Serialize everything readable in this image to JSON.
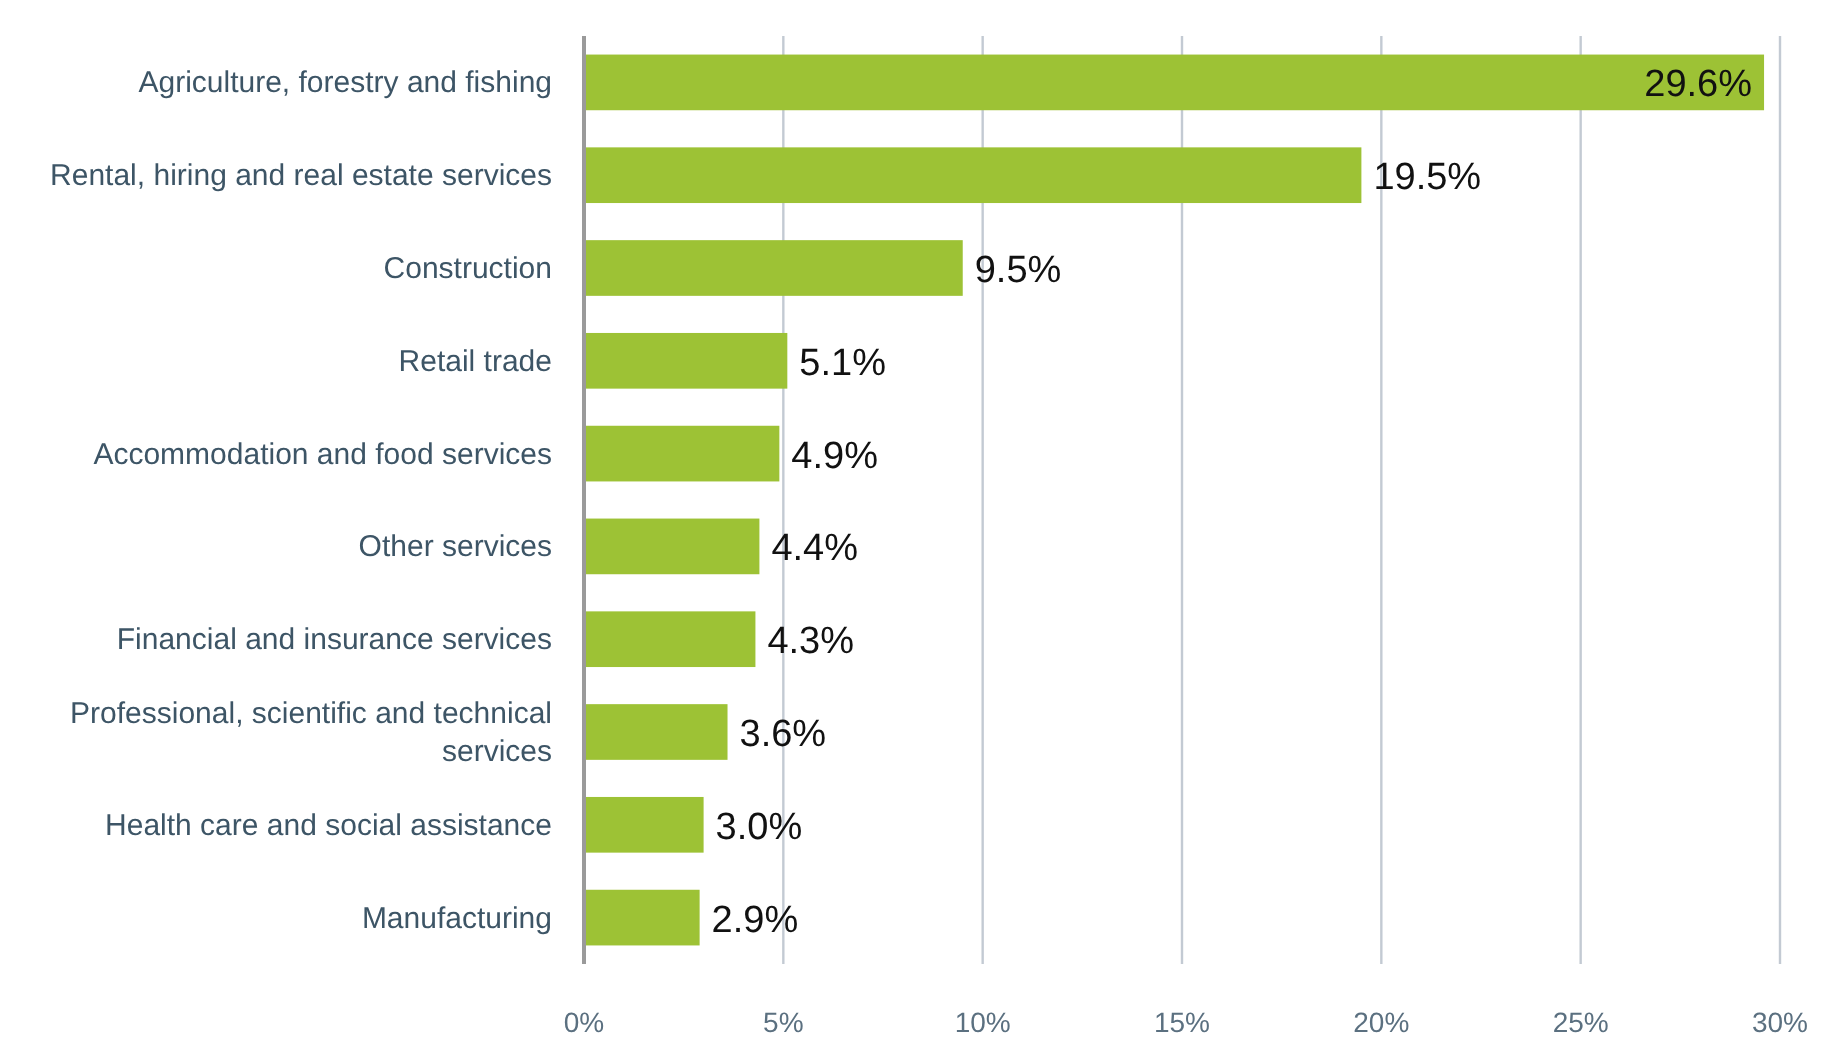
{
  "chart_data": {
    "type": "bar",
    "orientation": "horizontal",
    "categories": [
      "Agriculture, forestry and fishing",
      "Rental, hiring and real estate services",
      "Construction",
      "Retail trade",
      "Accommodation and food services",
      "Other services",
      "Financial and insurance services",
      "Professional, scientific and technical services",
      "Health care and social assistance",
      "Manufacturing"
    ],
    "values": [
      29.6,
      19.5,
      9.5,
      5.1,
      4.9,
      4.4,
      4.3,
      3.6,
      3.0,
      2.9
    ],
    "value_labels": [
      "29.6%",
      "19.5%",
      "9.5%",
      "5.1%",
      "4.9%",
      "4.4%",
      "4.3%",
      "3.6%",
      "3.0%",
      "2.9%"
    ],
    "color": "#9dc235",
    "xlim": [
      0,
      30
    ],
    "xticks": [
      {
        "value": 0,
        "label": "0%"
      },
      {
        "value": 5,
        "label": "5%"
      },
      {
        "value": 10,
        "label": "10%"
      },
      {
        "value": 15,
        "label": "15%"
      },
      {
        "value": 20,
        "label": "20%"
      },
      {
        "value": 25,
        "label": "25%"
      },
      {
        "value": 30,
        "label": "30%"
      }
    ],
    "grid": "x"
  }
}
